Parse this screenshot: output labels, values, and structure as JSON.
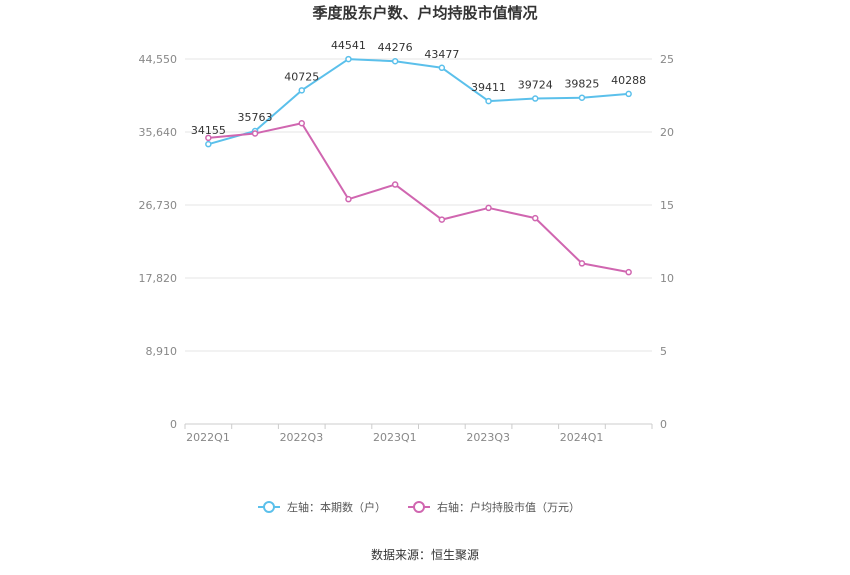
{
  "chart_data": {
    "type": "line",
    "title": "季度股东户数、户均持股市值情况",
    "categories": [
      "2022Q1",
      "2022Q2",
      "2022Q3",
      "2022Q4",
      "2023Q1",
      "2023Q2",
      "2023Q3",
      "2023Q4",
      "2024Q1",
      "2024Q2"
    ],
    "x_tick_labels": [
      "2022Q1",
      "2022Q3",
      "2023Q1",
      "2023Q3",
      "2024Q1"
    ],
    "left_axis": {
      "ylim": [
        0,
        44550
      ],
      "ticks": [
        0,
        8910,
        17820,
        26730,
        35640,
        44550
      ],
      "tick_labels": [
        "0",
        "8,910",
        "17,820",
        "26,730",
        "35,640",
        "44,550"
      ]
    },
    "right_axis": {
      "ylim": [
        0,
        25
      ],
      "ticks": [
        0,
        5,
        10,
        15,
        20,
        25
      ],
      "tick_labels": [
        "0",
        "5",
        "10",
        "15",
        "20",
        "25"
      ]
    },
    "series": [
      {
        "name": "左轴：本期数（户）",
        "axis": "left",
        "color": "#5bc0eb",
        "values": [
          34155,
          35763,
          40725,
          44541,
          44276,
          43477,
          39411,
          39724,
          39825,
          40288
        ],
        "labels": [
          "34155",
          "35763",
          "40725",
          "44541",
          "44276",
          "43477",
          "39411",
          "39724",
          "39825",
          "40288"
        ]
      },
      {
        "name": "右轴：户均持股市值（万元）",
        "axis": "right",
        "color": "#d066b0",
        "values": [
          19.6,
          19.9,
          20.6,
          15.4,
          16.4,
          14.0,
          14.8,
          14.1,
          11.0,
          10.4
        ]
      }
    ],
    "grid": true,
    "legend_position": "bottom-center",
    "source": "数据来源：恒生聚源"
  }
}
